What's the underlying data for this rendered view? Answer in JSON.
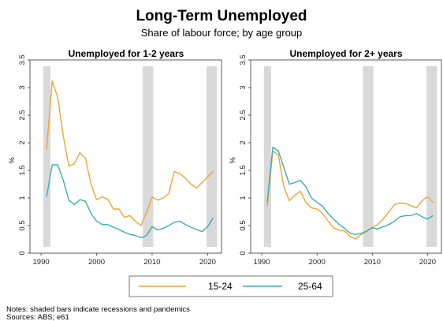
{
  "title": "Long-Term Unemployed",
  "subtitle": "Share of labour force; by age group",
  "legend": [
    {
      "label": "15-24",
      "color": "#f0a430"
    },
    {
      "label": "25-64",
      "color": "#3ab0b0"
    }
  ],
  "notes": [
    "Notes: shaded bars indicate recessions and pandemics",
    "Sources: ABS; e61"
  ],
  "y_axis_label": "%",
  "chart_data": [
    {
      "type": "line",
      "title": "Unemployed for 1-2 years",
      "xlim": [
        1988,
        2022.5
      ],
      "ylim": [
        0,
        3.5
      ],
      "xticks": [
        1990,
        2000,
        2010,
        2020
      ],
      "yticks": [
        0,
        0.5,
        1,
        1.5,
        2,
        2.5,
        3,
        3.5
      ],
      "shaded_periods": [
        [
          1990.4,
          1991.7
        ],
        [
          2008.3,
          2010.2
        ],
        [
          2019.8,
          2021.7
        ]
      ],
      "x": [
        1991,
        1992,
        1993,
        1994,
        1995,
        1996,
        1997,
        1998,
        1999,
        2000,
        2001,
        2002,
        2003,
        2004,
        2005,
        2006,
        2007,
        2008,
        2009,
        2010,
        2011,
        2012,
        2013,
        2014,
        2015,
        2016,
        2017,
        2018,
        2019,
        2020,
        2021
      ],
      "series": [
        {
          "name": "15-24",
          "values": [
            1.88,
            3.12,
            2.82,
            2.12,
            1.58,
            1.62,
            1.82,
            1.72,
            1.25,
            0.97,
            1.02,
            0.98,
            0.8,
            0.8,
            0.65,
            0.68,
            0.58,
            0.5,
            0.74,
            1.02,
            0.96,
            1.0,
            1.08,
            1.48,
            1.44,
            1.36,
            1.25,
            1.18,
            1.28,
            1.38,
            1.48
          ]
        },
        {
          "name": "25-64",
          "values": [
            1.02,
            1.6,
            1.6,
            1.32,
            0.96,
            0.88,
            0.97,
            0.94,
            0.72,
            0.58,
            0.52,
            0.52,
            0.47,
            0.43,
            0.38,
            0.34,
            0.32,
            0.28,
            0.32,
            0.48,
            0.42,
            0.45,
            0.5,
            0.56,
            0.58,
            0.52,
            0.47,
            0.43,
            0.39,
            0.48,
            0.64
          ]
        }
      ]
    },
    {
      "type": "line",
      "title": "Unemployed for 2+ years",
      "xlim": [
        1988,
        2022.5
      ],
      "ylim": [
        0,
        3.5
      ],
      "xticks": [
        1990,
        2000,
        2010,
        2020
      ],
      "yticks": [
        0,
        0.5,
        1,
        1.5,
        2,
        2.5,
        3,
        3.5
      ],
      "shaded_periods": [
        [
          1990.4,
          1991.7
        ],
        [
          2008.3,
          2010.2
        ],
        [
          2019.8,
          2021.7
        ]
      ],
      "x": [
        1991,
        1992,
        1993,
        1994,
        1995,
        1996,
        1997,
        1998,
        1999,
        2000,
        2001,
        2002,
        2003,
        2004,
        2005,
        2006,
        2007,
        2008,
        2009,
        2010,
        2011,
        2012,
        2013,
        2014,
        2015,
        2016,
        2017,
        2018,
        2019,
        2020,
        2021
      ],
      "series": [
        {
          "name": "15-24",
          "values": [
            0.85,
            1.85,
            1.78,
            1.2,
            0.95,
            1.05,
            1.12,
            0.92,
            0.82,
            0.8,
            0.72,
            0.58,
            0.46,
            0.42,
            0.4,
            0.3,
            0.26,
            0.34,
            0.4,
            0.47,
            0.52,
            0.62,
            0.75,
            0.88,
            0.91,
            0.9,
            0.86,
            0.82,
            0.95,
            1.02,
            0.92
          ]
        },
        {
          "name": "25-64",
          "values": [
            0.92,
            1.92,
            1.85,
            1.55,
            1.25,
            1.28,
            1.32,
            1.2,
            1.0,
            0.92,
            0.85,
            0.72,
            0.62,
            0.52,
            0.45,
            0.36,
            0.34,
            0.36,
            0.4,
            0.46,
            0.44,
            0.48,
            0.52,
            0.58,
            0.66,
            0.68,
            0.68,
            0.72,
            0.66,
            0.62,
            0.68
          ]
        }
      ]
    }
  ]
}
